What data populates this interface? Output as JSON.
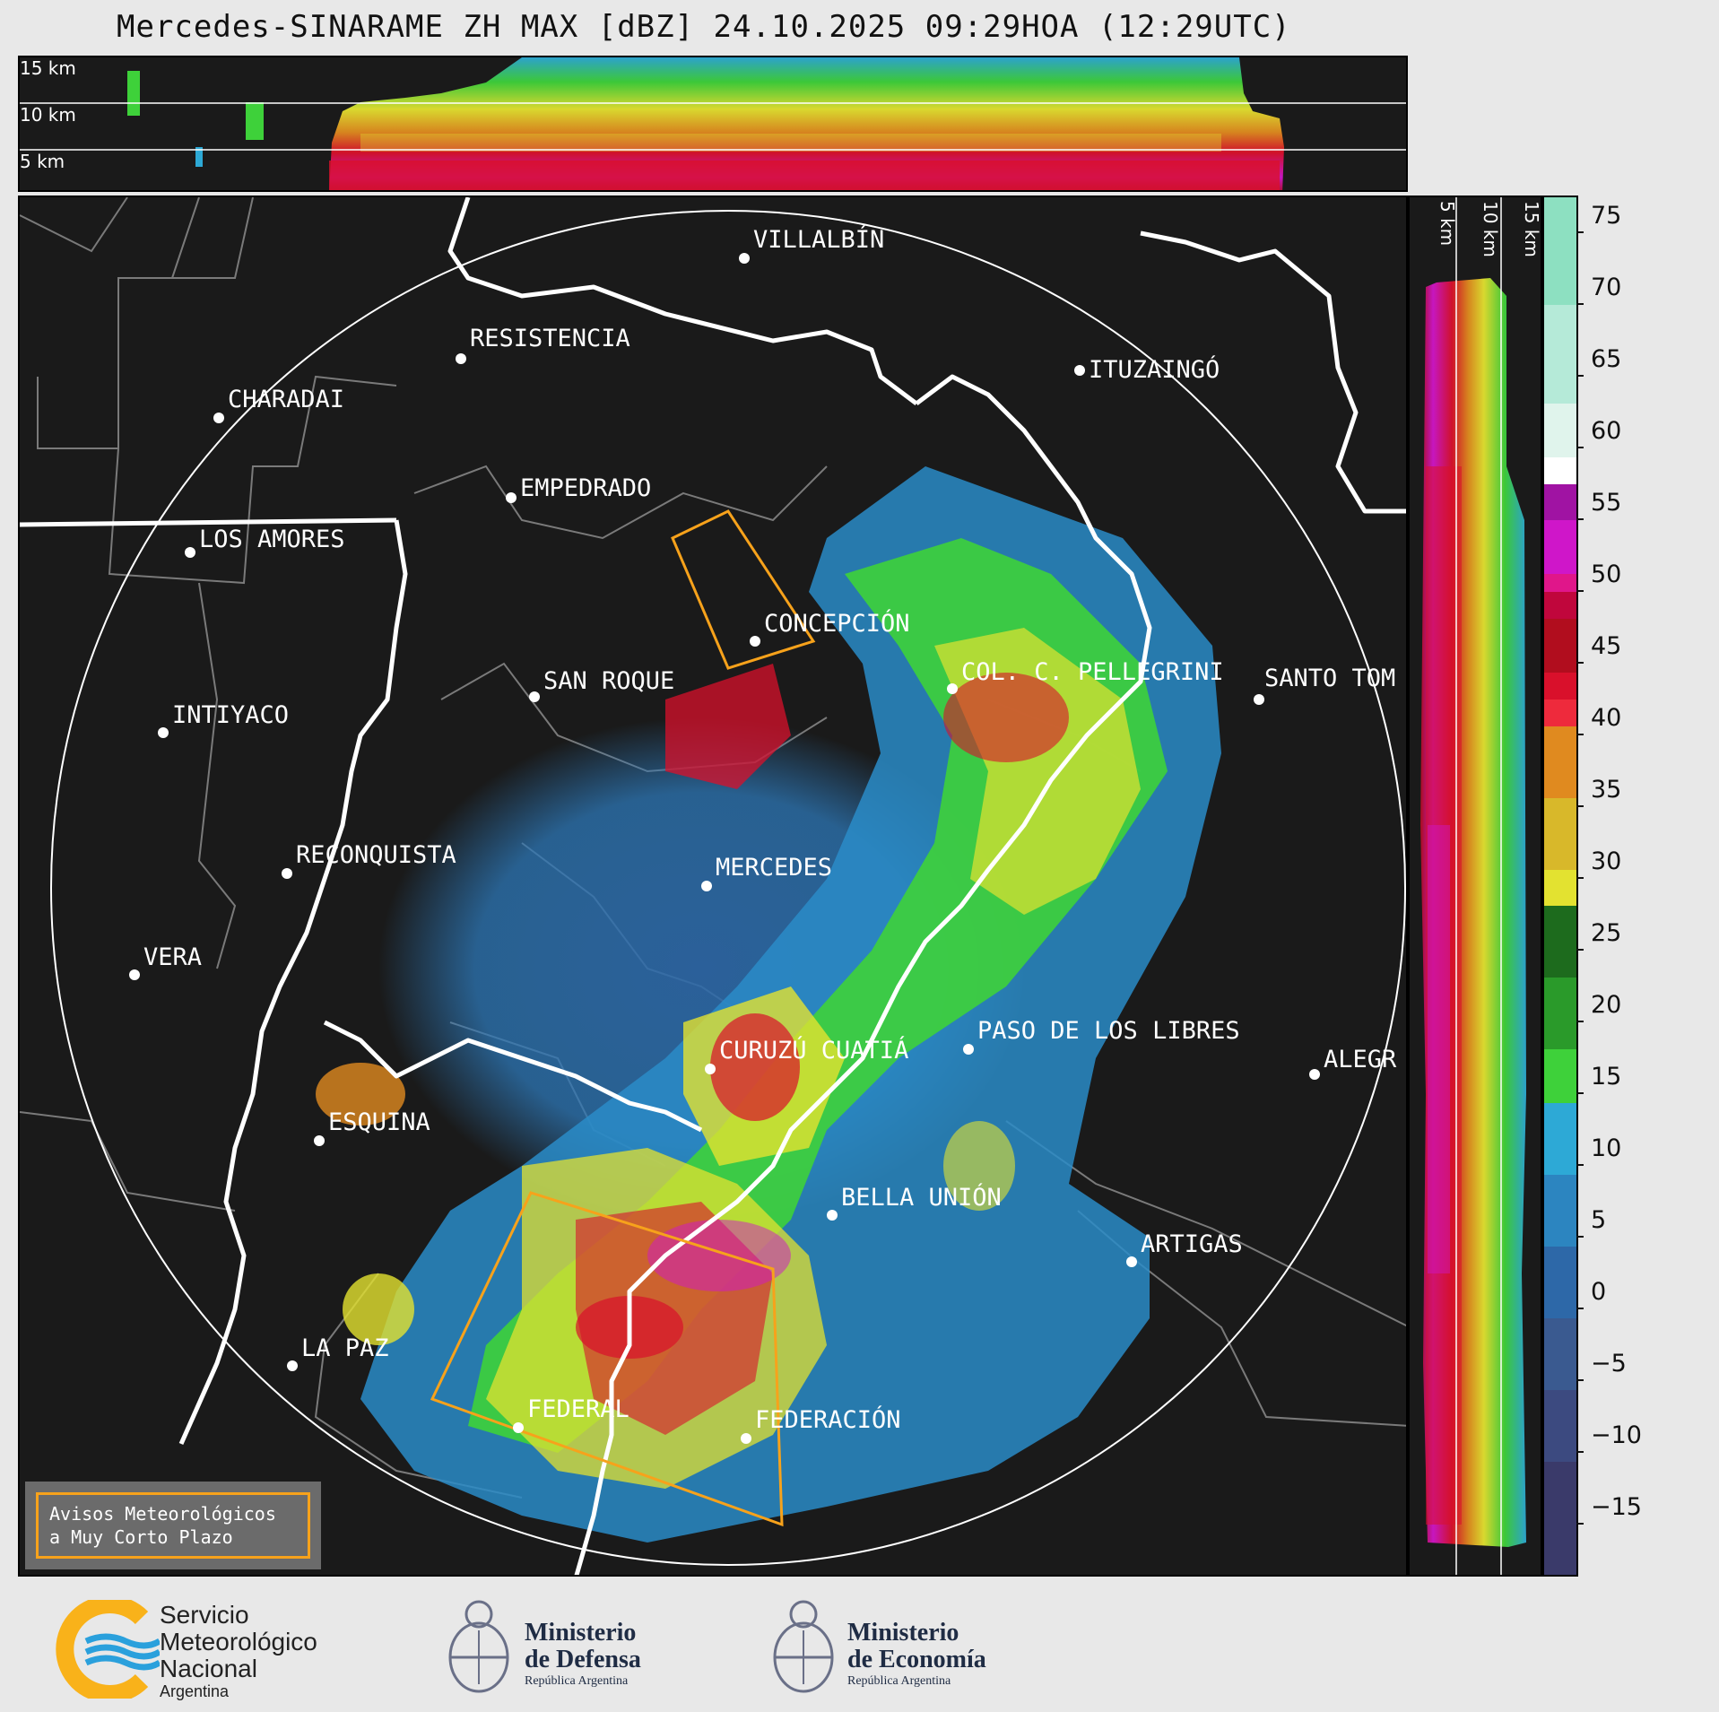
{
  "title": "Mercedes-SINARAME ZH MAX [dBZ] 24.10.2025 09:29HOA (12:29UTC)",
  "top_panel": {
    "height_labels": [
      "15 km",
      "10 km",
      "5 km"
    ]
  },
  "side_panel": {
    "height_labels": [
      "5 km",
      "10 km",
      "15 km"
    ]
  },
  "colorbar": {
    "unit": "dBZ",
    "ticks": [
      "75",
      "70",
      "65",
      "60",
      "55",
      "50",
      "45",
      "40",
      "35",
      "30",
      "25",
      "20",
      "15",
      "10",
      "5",
      "0",
      "−5",
      "−10",
      "−15"
    ]
  },
  "cities": [
    {
      "name": "VILLALBÍN"
    },
    {
      "name": "RESISTENCIA"
    },
    {
      "name": "CHARADAI"
    },
    {
      "name": "ITUZAINGÓ"
    },
    {
      "name": "EMPEDRADO"
    },
    {
      "name": "LOS AMORES"
    },
    {
      "name": "CONCEPCIÓN"
    },
    {
      "name": "SAN ROQUE"
    },
    {
      "name": "COL. C. PELLEGRINI"
    },
    {
      "name": "SANTO TOM"
    },
    {
      "name": "INTIYACO"
    },
    {
      "name": "RECONQUISTA"
    },
    {
      "name": "MERCEDES"
    },
    {
      "name": "VERA"
    },
    {
      "name": "CURUZÚ CUATIÁ"
    },
    {
      "name": "PASO DE LOS LIBRES"
    },
    {
      "name": "ALEGR"
    },
    {
      "name": "ESQUINA"
    },
    {
      "name": "BELLA UNIÓN"
    },
    {
      "name": "ARTIGAS"
    },
    {
      "name": "LA PAZ"
    },
    {
      "name": "FEDERAL"
    },
    {
      "name": "FEDERACIÓN"
    }
  ],
  "avisos": {
    "line1": "Avisos Meteorológicos",
    "line2": "a Muy Corto Plazo"
  },
  "logos": {
    "smn": {
      "line1": "Servicio",
      "line2": "Meteorológico",
      "line3": "Nacional",
      "line4": "Argentina"
    },
    "defensa": {
      "line1": "Ministerio",
      "line2": "de Defensa",
      "line3": "República Argentina"
    },
    "economia": {
      "line1": "Ministerio",
      "line2": "de Economía",
      "line3": "República Argentina"
    }
  },
  "colors": {
    "background": "#1a1a1a",
    "page": "#e8e8e8",
    "warning_box": "#f7a21b",
    "smn_blue": "#2aa0dc",
    "smn_yellow": "#f9b21a"
  }
}
